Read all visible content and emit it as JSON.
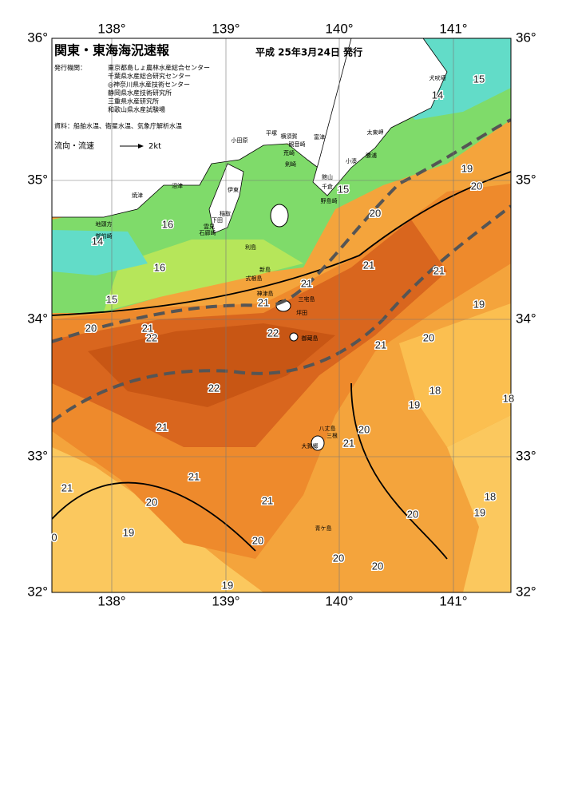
{
  "header": {
    "title": "関東・東海海況速報",
    "date": "平成 25年3月24日 発行",
    "org_label": "発行機関：",
    "orgs": [
      "東京都島しょ農林水産総合センター",
      "千葉県水産総合研究センター",
      "◎神奈川県水産技術センター",
      "静岡県水産技術研究所",
      "三重県水産研究所",
      "和歌山県水産試験場"
    ],
    "source": "資料：船舶水温、衛星水温、気象庁解析水温",
    "legend_label": "流向・流速",
    "legend_speed": "2kt"
  },
  "axes": {
    "lon_labels": [
      "138°",
      "139°",
      "140°",
      "141°"
    ],
    "lat_labels": [
      "36°",
      "35°",
      "34°",
      "33°",
      "32°"
    ]
  },
  "place_names": [
    "犬吠埼",
    "太東岬",
    "勝浦",
    "小湊",
    "館山",
    "千倉",
    "野島崎",
    "観音崎",
    "横須賀",
    "平塚",
    "富津",
    "荒崎",
    "剣崎",
    "小田原",
    "伊東",
    "稲取",
    "下田",
    "雲見",
    "石廊崎",
    "沼津",
    "焼津",
    "地頭方",
    "御前崎",
    "利島",
    "新島",
    "式根島",
    "神津島",
    "三宅島",
    "坪田",
    "御蔵島",
    "八丈島",
    "三根",
    "大賀郷",
    "青ケ島"
  ],
  "temperature_labels": [
    15,
    14,
    19,
    20,
    15,
    20,
    16,
    14,
    16,
    21,
    21,
    21,
    15,
    19,
    21,
    20,
    21,
    22,
    22,
    21,
    20,
    22,
    18,
    19,
    18,
    21,
    20,
    21,
    21,
    21,
    20,
    21,
    18,
    19,
    20,
    19,
    0,
    20,
    20,
    20,
    19
  ]
}
